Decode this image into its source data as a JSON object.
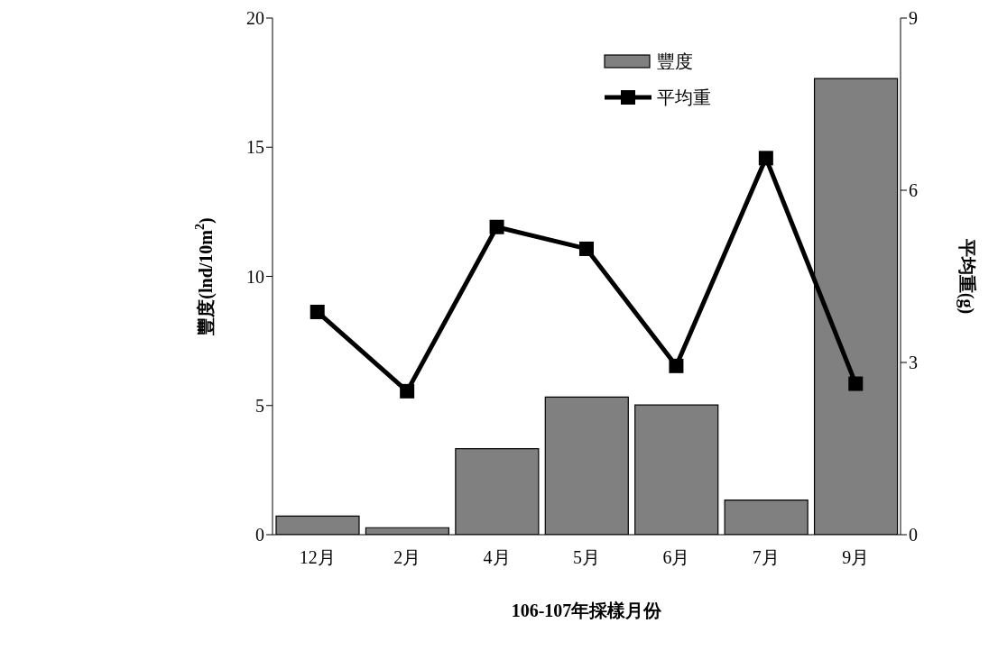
{
  "chart_data": {
    "type": "bar",
    "xlabel": "106-107年採樣月份",
    "ylabel": "豐度(lnd/10m$^{2}$)",
    "y2label": "平均重(g)",
    "categories": [
      "12月",
      "2月",
      "4月",
      "5月",
      "6月",
      "7月",
      "9月"
    ],
    "series": [
      {
        "name": "豐度",
        "color": "#808080",
        "values": [
          0.72,
          0.27,
          3.33,
          5.33,
          5.02,
          1.34,
          17.66
        ]
      },
      {
        "name": "平均重",
        "type": "line",
        "axis": "y2",
        "color": "#000000",
        "values": [
          3.88,
          2.5,
          5.36,
          4.98,
          2.94,
          6.56,
          2.63
        ]
      }
    ],
    "ylim": [
      0,
      20
    ],
    "yticks": [
      0,
      5,
      10,
      15,
      20
    ],
    "y2lim": [
      0,
      9
    ],
    "y2ticks": [
      0,
      3,
      6,
      9
    ],
    "grid": false,
    "legend": "top right",
    "marker": "square"
  }
}
